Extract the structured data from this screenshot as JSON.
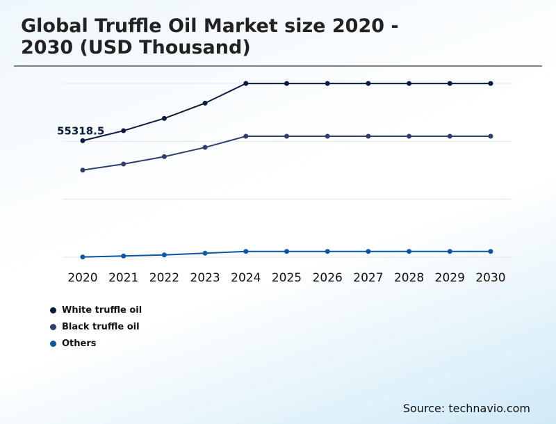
{
  "chart_data": {
    "type": "line",
    "title": "Global Truffle Oil Market size 2020 - 2030 (USD Thousand)",
    "xlabel": "",
    "ylabel": "",
    "categories": [
      "2020",
      "2021",
      "2022",
      "2023",
      "2024",
      "2025",
      "2026",
      "2027",
      "2028",
      "2029",
      "2030"
    ],
    "ylim": [
      0,
      82500
    ],
    "grid": true,
    "legend_position": "bottom-left",
    "series": [
      {
        "name": "White truffle oil",
        "color": "#0b1a3f",
        "values": [
          55318.5,
          60040,
          65880,
          73140,
          82475,
          82475,
          82475,
          82475,
          82475,
          82475,
          82475
        ]
      },
      {
        "name": "Black truffle oil",
        "color": "#2e3f6e",
        "values": [
          41340,
          44210,
          47740,
          52120,
          57400,
          57400,
          57400,
          57400,
          57400,
          57400,
          57400
        ]
      },
      {
        "name": "Others",
        "color": "#0a56a4",
        "values": [
          100,
          560,
          1090,
          1880,
          2740,
          2740,
          2740,
          2740,
          2740,
          2740,
          2740
        ]
      }
    ],
    "annotations": [
      {
        "series": "White truffle oil",
        "category": "2020",
        "text": "55318.5"
      }
    ]
  },
  "source": "Source: technavio.com"
}
